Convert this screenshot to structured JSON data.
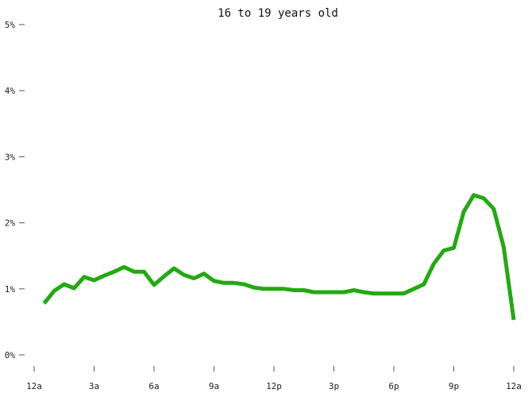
{
  "chart_data": {
    "type": "line",
    "title": "16 to 19 years old",
    "xlabel": "",
    "ylabel": "",
    "x_ticks": [
      {
        "value": 0,
        "label": "12a"
      },
      {
        "value": 3,
        "label": "3a"
      },
      {
        "value": 6,
        "label": "6a"
      },
      {
        "value": 9,
        "label": "9a"
      },
      {
        "value": 12,
        "label": "12p"
      },
      {
        "value": 15,
        "label": "3p"
      },
      {
        "value": 18,
        "label": "6p"
      },
      {
        "value": 21,
        "label": "9p"
      },
      {
        "value": 24,
        "label": "12a"
      }
    ],
    "y_ticks": [
      {
        "value": 0,
        "label": "0%"
      },
      {
        "value": 1,
        "label": "1%"
      },
      {
        "value": 2,
        "label": "2%"
      },
      {
        "value": 3,
        "label": "3%"
      },
      {
        "value": 4,
        "label": "4%"
      },
      {
        "value": 5,
        "label": "5%"
      }
    ],
    "xlim": [
      0,
      24
    ],
    "ylim": [
      0,
      5
    ],
    "grid": false,
    "line_color": "#22aa11",
    "series": [
      {
        "x": [
          0.5,
          1.0,
          1.5,
          2.0,
          2.5,
          3.0,
          3.5,
          4.0,
          4.5,
          5.0,
          5.5,
          6.0,
          6.5,
          7.0,
          7.5,
          8.0,
          8.5,
          9.0,
          9.5,
          10.0,
          10.5,
          11.0,
          11.5,
          12.0,
          12.5,
          13.0,
          13.5,
          14.0,
          14.5,
          15.0,
          15.5,
          16.0,
          16.5,
          17.0,
          17.5,
          18.0,
          18.5,
          19.0,
          19.5,
          20.0,
          20.5,
          21.0,
          21.5,
          22.0,
          22.5,
          23.0,
          23.5,
          24.0
        ],
        "values": [
          0.78,
          0.97,
          1.07,
          1.01,
          1.18,
          1.13,
          1.2,
          1.26,
          1.33,
          1.26,
          1.26,
          1.06,
          1.19,
          1.31,
          1.21,
          1.16,
          1.23,
          1.12,
          1.09,
          1.09,
          1.07,
          1.02,
          1.0,
          1.0,
          1.0,
          0.98,
          0.98,
          0.95,
          0.95,
          0.95,
          0.95,
          0.98,
          0.95,
          0.93,
          0.93,
          0.93,
          0.93,
          1.0,
          1.07,
          1.38,
          1.58,
          1.62,
          2.17,
          2.42,
          2.37,
          2.21,
          1.63,
          0.53
        ]
      }
    ]
  }
}
